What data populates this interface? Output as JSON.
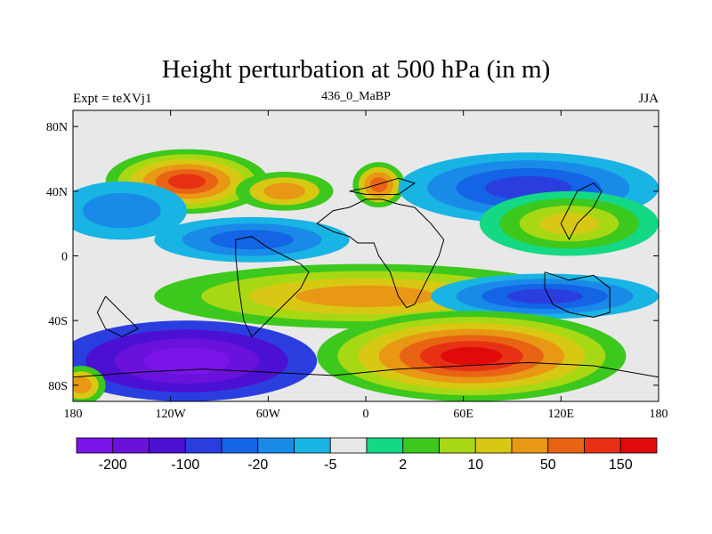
{
  "title": "Height perturbation at 500 hPa (in m)",
  "left_label": "Expt = teXVj1",
  "center_label": "436_0_MaBP",
  "right_label": "JJA",
  "lat_ticks": [
    {
      "lat": 80,
      "label": "80N"
    },
    {
      "lat": 40,
      "label": "40N"
    },
    {
      "lat": 0,
      "label": "0"
    },
    {
      "lat": -40,
      "label": "40S"
    },
    {
      "lat": -80,
      "label": "80S"
    }
  ],
  "lon_ticks": [
    {
      "lon": -180,
      "label": "180"
    },
    {
      "lon": -120,
      "label": "120W"
    },
    {
      "lon": -60,
      "label": "60W"
    },
    {
      "lon": 0,
      "label": "0"
    },
    {
      "lon": 60,
      "label": "60E"
    },
    {
      "lon": 120,
      "label": "120E"
    },
    {
      "lon": 180,
      "label": "180"
    }
  ],
  "colorbar": {
    "colors": [
      "#7a14e8",
      "#6a12dc",
      "#4c10d2",
      "#2a3ee0",
      "#1464e6",
      "#1a8ae8",
      "#18b4e4",
      "#e8e8e8",
      "#14d884",
      "#3cc81c",
      "#a8d814",
      "#d8c814",
      "#e89814",
      "#e86414",
      "#e83014",
      "#e00a0a"
    ],
    "labels": [
      {
        "boundary": 1,
        "text": "-200"
      },
      {
        "boundary": 3,
        "text": "-100"
      },
      {
        "boundary": 5,
        "text": "-20"
      },
      {
        "boundary": 7,
        "text": "-5"
      },
      {
        "boundary": 9,
        "text": "2"
      },
      {
        "boundary": 11,
        "text": "10"
      },
      {
        "boundary": 13,
        "text": "50"
      },
      {
        "boundary": 15,
        "text": "150"
      }
    ]
  },
  "field_blobs": [
    {
      "lon": -110,
      "lat": 46,
      "rlon": 50,
      "rlat": 20,
      "levels": [
        9,
        10,
        11,
        12,
        13,
        14
      ]
    },
    {
      "lon": -50,
      "lat": 40,
      "rlon": 30,
      "rlat": 12,
      "levels": [
        9,
        11,
        12
      ]
    },
    {
      "lon": 8,
      "lat": 44,
      "rlon": 16,
      "rlat": 14,
      "levels": [
        9,
        11,
        12,
        13
      ]
    },
    {
      "lon": -150,
      "lat": 28,
      "rlon": 40,
      "rlat": 18,
      "levels": [
        6,
        5
      ]
    },
    {
      "lon": 100,
      "lat": 42,
      "rlon": 80,
      "rlat": 22,
      "levels": [
        6,
        5,
        4,
        3
      ]
    },
    {
      "lon": 125,
      "lat": 20,
      "rlon": 55,
      "rlat": 20,
      "levels": [
        8,
        9,
        10,
        11
      ]
    },
    {
      "lon": -70,
      "lat": 10,
      "rlon": 60,
      "rlat": 14,
      "levels": [
        6,
        5,
        4
      ]
    },
    {
      "lon": 0,
      "lat": -25,
      "rlon": 130,
      "rlat": 20,
      "levels": [
        9,
        10,
        11,
        12
      ]
    },
    {
      "lon": 110,
      "lat": -25,
      "rlon": 70,
      "rlat": 14,
      "levels": [
        6,
        5,
        4,
        3
      ]
    },
    {
      "lon": -110,
      "lat": -65,
      "rlon": 80,
      "rlat": 25,
      "levels": [
        3,
        2,
        1,
        0
      ]
    },
    {
      "lon": 65,
      "lat": -62,
      "rlon": 95,
      "rlat": 28,
      "levels": [
        9,
        10,
        11,
        12,
        13,
        14,
        15
      ]
    },
    {
      "lon": -175,
      "lat": -80,
      "rlon": 15,
      "rlat": 12,
      "levels": [
        9,
        11,
        12
      ]
    }
  ],
  "coastlines": [
    [
      [
        -30,
        20
      ],
      [
        -20,
        15
      ],
      [
        -10,
        12
      ],
      [
        -5,
        8
      ],
      [
        5,
        8
      ],
      [
        8,
        0
      ],
      [
        15,
        -10
      ],
      [
        20,
        -25
      ],
      [
        25,
        -32
      ],
      [
        30,
        -30
      ],
      [
        35,
        -20
      ],
      [
        40,
        -10
      ],
      [
        45,
        0
      ],
      [
        48,
        10
      ],
      [
        40,
        20
      ],
      [
        30,
        30
      ],
      [
        20,
        32
      ],
      [
        10,
        35
      ],
      [
        0,
        35
      ],
      [
        -10,
        30
      ],
      [
        -20,
        28
      ],
      [
        -30,
        20
      ]
    ],
    [
      [
        -80,
        10
      ],
      [
        -70,
        12
      ],
      [
        -60,
        5
      ],
      [
        -50,
        0
      ],
      [
        -40,
        -5
      ],
      [
        -35,
        -10
      ],
      [
        -40,
        -20
      ],
      [
        -50,
        -30
      ],
      [
        -60,
        -40
      ],
      [
        -70,
        -50
      ],
      [
        -75,
        -40
      ],
      [
        -78,
        -20
      ],
      [
        -80,
        0
      ],
      [
        -80,
        10
      ]
    ],
    [
      [
        -180,
        -75
      ],
      [
        -140,
        -72
      ],
      [
        -100,
        -70
      ],
      [
        -60,
        -72
      ],
      [
        -20,
        -74
      ],
      [
        20,
        -70
      ],
      [
        60,
        -68
      ],
      [
        100,
        -66
      ],
      [
        140,
        -68
      ],
      [
        180,
        -75
      ]
    ],
    [
      [
        -10,
        40
      ],
      [
        0,
        42
      ],
      [
        10,
        45
      ],
      [
        20,
        48
      ],
      [
        30,
        45
      ],
      [
        20,
        38
      ],
      [
        10,
        38
      ],
      [
        0,
        38
      ],
      [
        -10,
        40
      ]
    ],
    [
      [
        110,
        -10
      ],
      [
        125,
        -15
      ],
      [
        140,
        -12
      ],
      [
        150,
        -20
      ],
      [
        150,
        -35
      ],
      [
        140,
        -38
      ],
      [
        125,
        -35
      ],
      [
        115,
        -30
      ],
      [
        110,
        -20
      ],
      [
        110,
        -10
      ]
    ],
    [
      [
        125,
        10
      ],
      [
        130,
        20
      ],
      [
        140,
        30
      ],
      [
        145,
        40
      ],
      [
        140,
        45
      ],
      [
        130,
        40
      ],
      [
        125,
        30
      ],
      [
        120,
        20
      ],
      [
        125,
        10
      ]
    ],
    [
      [
        -160,
        -25
      ],
      [
        -150,
        -35
      ],
      -140,
      [
        -140,
        -45
      ],
      [
        -150,
        -50
      ],
      [
        -160,
        -45
      ],
      [
        -165,
        -35
      ],
      [
        -160,
        -25
      ]
    ]
  ]
}
